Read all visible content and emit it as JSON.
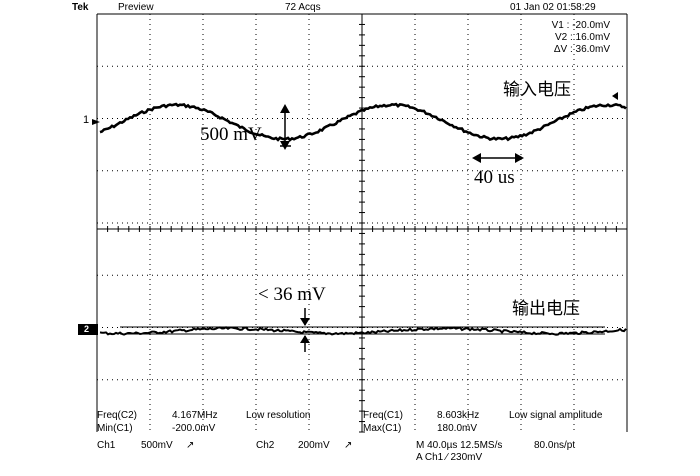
{
  "topbar": {
    "brand": "Tek",
    "mode": "Preview",
    "acqs": "72 Acqs",
    "datetime": "01 Jan 02 01:58:29"
  },
  "cursor_readout": {
    "v1": "V1 :   -20.0mV",
    "v2": "V2 :    16.0mV",
    "dv": "ΔV :   36.0mV"
  },
  "annotations": {
    "input_voltage": "输入电压",
    "output_voltage": "输出电压",
    "amplitude": "500 mV",
    "period": "40 us",
    "ripple": "< 36 mV"
  },
  "markers": {
    "ch1": "1",
    "ch2": "2"
  },
  "measurements": {
    "freq_c2_label": "Freq(C2)",
    "freq_c2_value": "4.167MHz",
    "freq_c2_note": "Low resolution",
    "min_c1_label": "Min(C1)",
    "min_c1_value": "-200.0mV",
    "freq_c1_label": "Freq(C1)",
    "freq_c1_value": "8.603kHz",
    "freq_c1_note": "Low signal amplitude",
    "max_c1_label": "Max(C1)",
    "max_c1_value": "180.0mV"
  },
  "status": {
    "ch1": "Ch1",
    "ch1_scale": "500mV",
    "ch1_coupling": "↗",
    "ch2": "Ch2",
    "ch2_scale": "200mV",
    "ch2_coupling": "↗",
    "timebase": "M 40.0µs 12.5MS/s",
    "sample_interval": "80.0ns/pt",
    "trigger": "A  Ch1  ∕  230mV"
  }
}
